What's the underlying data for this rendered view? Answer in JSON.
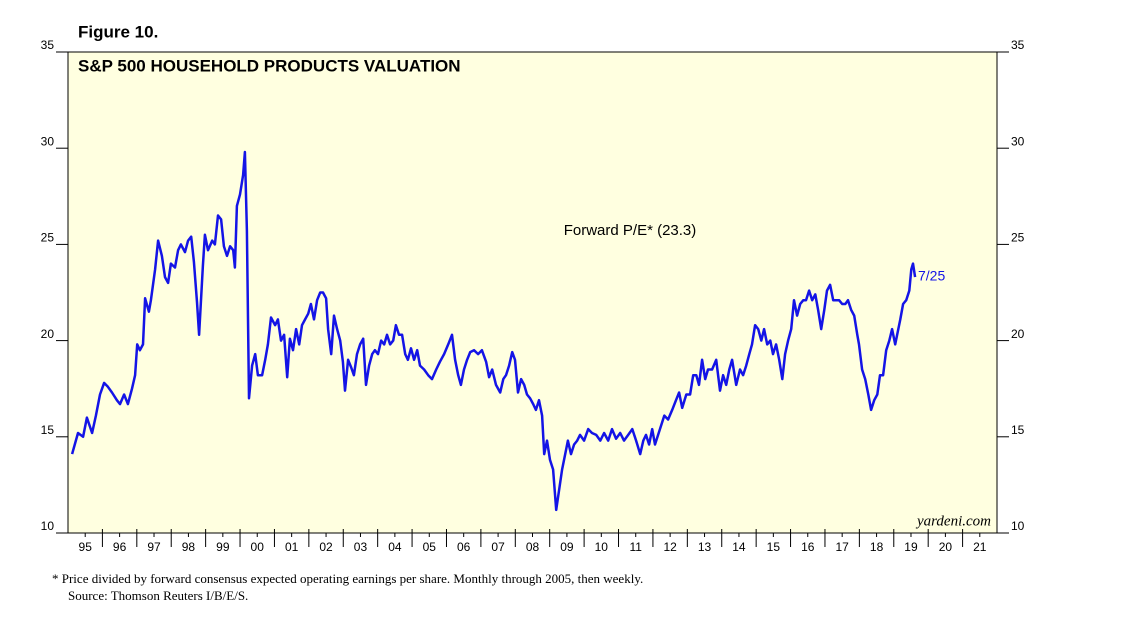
{
  "chart_data": {
    "type": "line",
    "figure_label": "Figure 10.",
    "title": "S&P 500 HOUSEHOLD PRODUCTS VALUATION",
    "end_label": "7/25",
    "watermark": "yardeni.com",
    "footnotes": [
      "*  Price divided by forward consensus expected operating earnings per share. Monthly through 2005, then weekly.",
      "Source: Thomson Reuters I/B/E/S."
    ],
    "xlim": [
      1995,
      2022
    ],
    "xticks": [
      {
        "value": 1995.5,
        "label": "95"
      },
      {
        "value": 1996.5,
        "label": "96"
      },
      {
        "value": 1997.5,
        "label": "97"
      },
      {
        "value": 1998.5,
        "label": "98"
      },
      {
        "value": 1999.5,
        "label": "99"
      },
      {
        "value": 2000.5,
        "label": "00"
      },
      {
        "value": 2001.5,
        "label": "01"
      },
      {
        "value": 2002.5,
        "label": "02"
      },
      {
        "value": 2003.5,
        "label": "03"
      },
      {
        "value": 2004.5,
        "label": "04"
      },
      {
        "value": 2005.5,
        "label": "05"
      },
      {
        "value": 2006.5,
        "label": "06"
      },
      {
        "value": 2007.5,
        "label": "07"
      },
      {
        "value": 2008.5,
        "label": "08"
      },
      {
        "value": 2009.5,
        "label": "09"
      },
      {
        "value": 2010.5,
        "label": "10"
      },
      {
        "value": 2011.5,
        "label": "11"
      },
      {
        "value": 2012.5,
        "label": "12"
      },
      {
        "value": 2013.5,
        "label": "13"
      },
      {
        "value": 2014.5,
        "label": "14"
      },
      {
        "value": 2015.5,
        "label": "15"
      },
      {
        "value": 2016.5,
        "label": "16"
      },
      {
        "value": 2017.5,
        "label": "17"
      },
      {
        "value": 2018.5,
        "label": "18"
      },
      {
        "value": 2019.5,
        "label": "19"
      },
      {
        "value": 2020.5,
        "label": "20"
      },
      {
        "value": 2021.5,
        "label": "21"
      }
    ],
    "xminorticks": [
      1996,
      1997,
      1998,
      1999,
      2000,
      2001,
      2002,
      2003,
      2004,
      2005,
      2006,
      2007,
      2008,
      2009,
      2010,
      2011,
      2012,
      2013,
      2014,
      2015,
      2016,
      2017,
      2018,
      2019,
      2020,
      2021
    ],
    "ylim": [
      10,
      35
    ],
    "yticks": [
      10,
      15,
      20,
      25,
      30,
      35
    ],
    "x": [
      1995.12,
      1995.29,
      1995.44,
      1995.55,
      1995.7,
      1995.81,
      1995.93,
      1996.05,
      1996.16,
      1996.28,
      1996.42,
      1996.51,
      1996.63,
      1996.74,
      1996.86,
      1996.95,
      1997.01,
      1997.09,
      1997.18,
      1997.24,
      1997.35,
      1997.41,
      1997.53,
      1997.62,
      1997.73,
      1997.82,
      1997.91,
      1997.99,
      1998.11,
      1998.2,
      1998.28,
      1998.4,
      1998.49,
      1998.58,
      1998.66,
      1998.75,
      1998.81,
      1998.92,
      1998.98,
      1999.07,
      1999.19,
      1999.27,
      1999.36,
      1999.45,
      1999.53,
      1999.62,
      1999.71,
      1999.8,
      1999.85,
      1999.91,
      2000.0,
      2000.09,
      2000.14,
      2000.2,
      2000.26,
      2000.35,
      2000.44,
      2000.52,
      2000.64,
      2000.73,
      2000.81,
      2000.9,
      2001.02,
      2001.1,
      2001.19,
      2001.28,
      2001.37,
      2001.45,
      2001.54,
      2001.63,
      2001.72,
      2001.8,
      2001.89,
      2001.98,
      2002.06,
      2002.15,
      2002.24,
      2002.33,
      2002.41,
      2002.5,
      2002.56,
      2002.65,
      2002.73,
      2002.82,
      2002.91,
      2002.99,
      2003.05,
      2003.14,
      2003.23,
      2003.31,
      2003.4,
      2003.49,
      2003.58,
      2003.66,
      2003.75,
      2003.84,
      2003.92,
      2004.01,
      2004.1,
      2004.19,
      2004.27,
      2004.36,
      2004.45,
      2004.53,
      2004.62,
      2004.71,
      2004.8,
      2004.88,
      2004.97,
      2005.06,
      2005.15,
      2005.23,
      2005.35,
      2005.47,
      2005.58,
      2005.7,
      2005.81,
      2005.93,
      2006.05,
      2006.16,
      2006.25,
      2006.34,
      2006.42,
      2006.51,
      2006.6,
      2006.69,
      2006.8,
      2006.92,
      2007.03,
      2007.15,
      2007.24,
      2007.33,
      2007.44,
      2007.56,
      2007.65,
      2007.73,
      2007.82,
      2007.91,
      2007.99,
      2008.08,
      2008.17,
      2008.26,
      2008.34,
      2008.43,
      2008.52,
      2008.6,
      2008.69,
      2008.78,
      2008.84,
      2008.92,
      2009.01,
      2009.1,
      2009.19,
      2009.27,
      2009.36,
      2009.45,
      2009.53,
      2009.62,
      2009.71,
      2009.8,
      2009.88,
      2010.0,
      2010.12,
      2010.23,
      2010.35,
      2010.47,
      2010.58,
      2010.7,
      2010.81,
      2010.93,
      2011.05,
      2011.16,
      2011.28,
      2011.4,
      2011.51,
      2011.63,
      2011.72,
      2011.8,
      2011.89,
      2011.98,
      2012.06,
      2012.15,
      2012.24,
      2012.33,
      2012.44,
      2012.56,
      2012.67,
      2012.76,
      2012.85,
      2012.97,
      2013.08,
      2013.17,
      2013.26,
      2013.34,
      2013.43,
      2013.52,
      2013.6,
      2013.72,
      2013.84,
      2013.95,
      2014.04,
      2014.13,
      2014.22,
      2014.3,
      2014.42,
      2014.53,
      2014.62,
      2014.71,
      2014.8,
      2014.88,
      2014.97,
      2015.06,
      2015.15,
      2015.23,
      2015.32,
      2015.41,
      2015.49,
      2015.58,
      2015.67,
      2015.76,
      2015.84,
      2015.93,
      2016.02,
      2016.1,
      2016.19,
      2016.28,
      2016.37,
      2016.45,
      2016.54,
      2016.63,
      2016.72,
      2016.8,
      2016.89,
      2016.98,
      2017.06,
      2017.15,
      2017.24,
      2017.33,
      2017.41,
      2017.5,
      2017.59,
      2017.67,
      2017.76,
      2017.85,
      2017.94,
      2017.99,
      2018.08,
      2018.17,
      2018.26,
      2018.34,
      2018.43,
      2018.52,
      2018.6,
      2018.69,
      2018.78,
      2018.87,
      2018.95,
      2019.04,
      2019.13,
      2019.19,
      2019.27,
      2019.36,
      2019.45,
      2019.51,
      2019.56,
      2019.62
    ],
    "series": [
      {
        "name": "Forward P/E* (23.3)",
        "color": "#1414e6",
        "values": [
          14.1,
          15.2,
          15.0,
          16.0,
          15.2,
          16.1,
          17.2,
          17.8,
          17.6,
          17.3,
          16.9,
          16.7,
          17.2,
          16.7,
          17.5,
          18.2,
          19.8,
          19.5,
          19.8,
          22.2,
          21.5,
          22.1,
          23.7,
          25.2,
          24.4,
          23.3,
          23.0,
          24.0,
          23.8,
          24.7,
          25.0,
          24.6,
          25.2,
          25.4,
          24.1,
          22.0,
          20.3,
          23.9,
          25.5,
          24.7,
          25.2,
          25.0,
          26.5,
          26.3,
          24.9,
          24.4,
          24.9,
          24.7,
          23.8,
          27.0,
          27.6,
          28.6,
          29.8,
          25.7,
          17.0,
          18.7,
          19.3,
          18.2,
          18.2,
          19.0,
          19.8,
          21.2,
          20.8,
          21.1,
          20.0,
          20.3,
          18.1,
          20.1,
          19.5,
          20.6,
          19.8,
          20.8,
          21.1,
          21.4,
          21.9,
          21.1,
          22.1,
          22.5,
          22.5,
          22.2,
          20.6,
          19.3,
          21.3,
          20.6,
          20.0,
          18.9,
          17.4,
          19.0,
          18.6,
          18.2,
          19.3,
          19.8,
          20.1,
          17.7,
          18.7,
          19.3,
          19.5,
          19.3,
          20.0,
          19.8,
          20.3,
          19.8,
          20.0,
          20.8,
          20.3,
          20.3,
          19.3,
          19.0,
          19.6,
          19.0,
          19.5,
          18.7,
          18.5,
          18.2,
          18.0,
          18.5,
          18.9,
          19.3,
          19.8,
          20.3,
          19.0,
          18.2,
          17.7,
          18.5,
          19.0,
          19.4,
          19.5,
          19.3,
          19.5,
          18.9,
          18.1,
          18.5,
          17.7,
          17.3,
          18.0,
          18.2,
          18.7,
          19.4,
          19.0,
          17.3,
          18.0,
          17.7,
          17.2,
          17.0,
          16.7,
          16.4,
          16.9,
          16.1,
          14.1,
          14.8,
          13.8,
          13.3,
          11.2,
          12.2,
          13.3,
          14.1,
          14.8,
          14.1,
          14.6,
          14.8,
          15.1,
          14.8,
          15.4,
          15.2,
          15.1,
          14.8,
          15.2,
          14.8,
          15.4,
          14.9,
          15.2,
          14.8,
          15.1,
          15.4,
          14.8,
          14.1,
          14.8,
          15.1,
          14.6,
          15.4,
          14.6,
          15.1,
          15.6,
          16.1,
          15.9,
          16.4,
          16.9,
          17.3,
          16.5,
          17.2,
          17.2,
          18.2,
          18.2,
          17.7,
          19.0,
          18.0,
          18.5,
          18.5,
          19.0,
          17.4,
          18.2,
          17.7,
          18.5,
          19.0,
          17.7,
          18.5,
          18.2,
          18.7,
          19.3,
          19.8,
          20.8,
          20.6,
          20.0,
          20.6,
          19.8,
          20.0,
          19.3,
          19.8,
          19.0,
          18.0,
          19.3,
          20.0,
          20.6,
          22.1,
          21.3,
          21.9,
          22.1,
          22.1,
          22.6,
          22.1,
          22.4,
          21.6,
          20.6,
          21.6,
          22.6,
          22.9,
          22.1,
          22.1,
          22.1,
          21.9,
          21.9,
          22.1,
          21.6,
          21.3,
          20.3,
          19.8,
          18.5,
          18.0,
          17.2,
          16.4,
          16.9,
          17.2,
          18.2,
          18.2,
          19.5,
          20.0,
          20.6,
          19.8,
          20.6,
          21.1,
          21.9,
          22.1,
          22.6,
          23.7,
          24.0,
          23.3
        ]
      }
    ]
  }
}
